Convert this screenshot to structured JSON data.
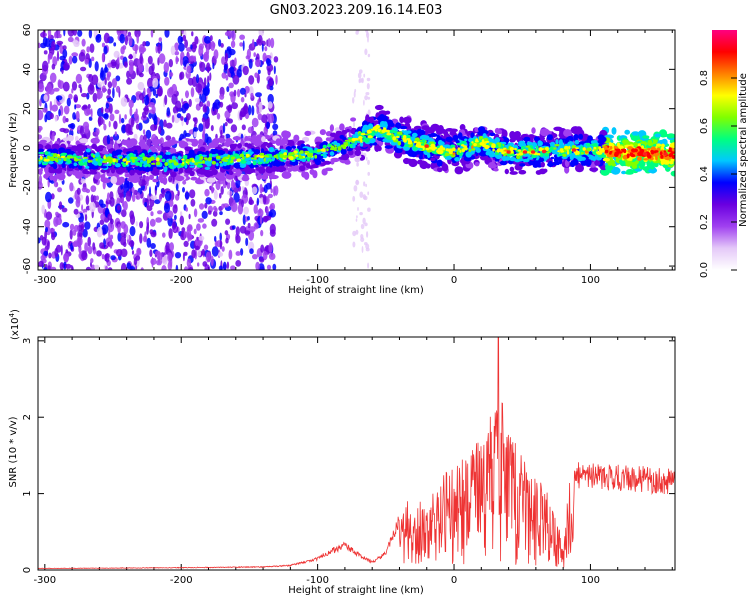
{
  "chart_data": [
    {
      "type": "heatmap",
      "title": "GN03.2023.209.16.14.E03",
      "xlabel": "Height of straight line (km)",
      "ylabel": "Frequency (Hz)",
      "xlim": [
        -305,
        162
      ],
      "ylim": [
        -62,
        60
      ],
      "x_ticks": [
        -300,
        -200,
        -100,
        0,
        100
      ],
      "y_ticks": [
        -60,
        -40,
        -20,
        0,
        20,
        40,
        60
      ],
      "colorbar": {
        "label": "Normalized spectral amplitude",
        "range": [
          0,
          1
        ],
        "ticks": [
          0.0,
          0.2,
          0.4,
          0.6,
          0.8
        ],
        "colors": [
          "#ffffff",
          "#e4c8f8",
          "#a040f0",
          "#6a00e0",
          "#0000ff",
          "#00c8ff",
          "#00ff80",
          "#80ff00",
          "#ffff00",
          "#ff8000",
          "#ff0000",
          "#ff0080"
        ]
      },
      "ridge": {
        "x": [
          -305,
          -250,
          -200,
          -150,
          -100,
          -80,
          -65,
          -55,
          -45,
          -30,
          -20,
          -10,
          0,
          10,
          20,
          30,
          40,
          60,
          80,
          100,
          120,
          140,
          162
        ],
        "y": [
          -5,
          -6,
          -7,
          -5,
          -3,
          2,
          6,
          10,
          6,
          3,
          1,
          -1,
          -2,
          1,
          3,
          0,
          -2,
          -2,
          -1,
          -1,
          -2,
          -3,
          -3
        ]
      }
    },
    {
      "type": "line",
      "title": "",
      "xlabel": "Height of straight line (km)",
      "ylabel": "SNR (10 * v/v)",
      "y_multiplier": "(x10",
      "y_multiplier_exp": "4",
      "y_multiplier_close": ")",
      "xlim": [
        -305,
        162
      ],
      "ylim": [
        0,
        3.05
      ],
      "x_ticks": [
        -300,
        -200,
        -100,
        0,
        100
      ],
      "y_ticks": [
        0,
        1,
        2,
        3
      ],
      "series": [
        {
          "color": "#ee3333",
          "envelope": {
            "x": [
              -305,
              -200,
              -140,
              -120,
              -100,
              -90,
              -80,
              -70,
              -60,
              -50,
              -40,
              -35,
              -30,
              -20,
              -10,
              0,
              10,
              20,
              30,
              33,
              40,
              45,
              50,
              60,
              70,
              80,
              85,
              100,
              130,
              162
            ],
            "y": [
              0.02,
              0.03,
              0.04,
              0.06,
              0.15,
              0.25,
              0.32,
              0.2,
              0.1,
              0.22,
              0.65,
              0.95,
              0.8,
              1.0,
              1.2,
              1.4,
              1.55,
              1.75,
              2.2,
              2.5,
              1.9,
              1.8,
              1.5,
              1.3,
              1.0,
              0.35,
              1.25,
              1.22,
              1.2,
              1.15
            ]
          },
          "peak": {
            "x": 32.5,
            "y": 3.05
          }
        }
      ]
    }
  ]
}
